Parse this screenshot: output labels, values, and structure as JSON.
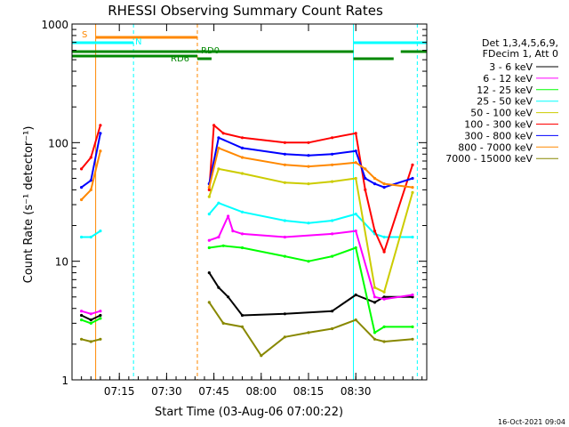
{
  "chart_data": {
    "type": "line",
    "title": "RHESSI Observing Summary Count Rates",
    "xlabel": "Start Time (03-Aug-06 07:00:22)",
    "ylabel": "Count Rate (s⁻¹ detector⁻¹)",
    "y_scale": "log",
    "ylim": [
      1,
      1000
    ],
    "xlim": [
      0,
      7.5
    ],
    "x_ticks": [
      {
        "label": "07:15"
      },
      {
        "label": "07:30"
      },
      {
        "label": "07:45"
      },
      {
        "label": "08:00"
      },
      {
        "label": "08:15"
      },
      {
        "label": "08:30"
      }
    ],
    "y_ticks": [
      {
        "label": "1",
        "value": 1
      },
      {
        "label": "10",
        "value": 10
      },
      {
        "label": "100",
        "value": 100
      },
      {
        "label": "1000",
        "value": 1000
      }
    ],
    "legend_header": [
      "Det 1,3,4,5,6,9,",
      "FDecim 1, Att 0"
    ],
    "legend_position": "right",
    "series": [
      {
        "name": "3 - 6 keV",
        "color": "#000000",
        "points": [
          [
            0.2,
            3.5
          ],
          [
            0.4,
            3.2
          ],
          [
            0.6,
            3.5
          ],
          [
            2.9,
            8
          ],
          [
            3.1,
            6
          ],
          [
            3.3,
            5
          ],
          [
            3.6,
            3.5
          ],
          [
            4.5,
            3.6
          ],
          [
            5.5,
            3.8
          ],
          [
            6.0,
            5.2
          ],
          [
            6.4,
            4.5
          ],
          [
            6.6,
            5
          ],
          [
            7.2,
            5
          ]
        ]
      },
      {
        "name": "6 - 12 keV",
        "color": "#ff00ff",
        "points": [
          [
            0.2,
            3.8
          ],
          [
            0.4,
            3.6
          ],
          [
            0.6,
            3.8
          ],
          [
            2.9,
            15
          ],
          [
            3.1,
            16
          ],
          [
            3.3,
            24
          ],
          [
            3.4,
            18
          ],
          [
            3.6,
            17
          ],
          [
            4.5,
            16
          ],
          [
            5.5,
            17
          ],
          [
            6.0,
            18
          ],
          [
            6.4,
            5
          ],
          [
            6.6,
            4.8
          ],
          [
            7.2,
            5.2
          ]
        ]
      },
      {
        "name": "12 - 25 keV",
        "color": "#00ff00",
        "points": [
          [
            0.2,
            3.2
          ],
          [
            0.4,
            3.0
          ],
          [
            0.6,
            3.3
          ],
          [
            2.9,
            13
          ],
          [
            3.2,
            13.5
          ],
          [
            3.6,
            13
          ],
          [
            4.5,
            11
          ],
          [
            5.0,
            10
          ],
          [
            5.5,
            11
          ],
          [
            6.0,
            13
          ],
          [
            6.4,
            2.5
          ],
          [
            6.6,
            2.8
          ],
          [
            7.2,
            2.8
          ]
        ]
      },
      {
        "name": "25 - 50 keV",
        "color": "#00ffff",
        "points": [
          [
            0.2,
            16
          ],
          [
            0.4,
            16
          ],
          [
            0.6,
            18
          ],
          [
            2.9,
            25
          ],
          [
            3.1,
            31
          ],
          [
            3.6,
            26
          ],
          [
            4.5,
            22
          ],
          [
            5.0,
            21
          ],
          [
            5.5,
            22
          ],
          [
            6.0,
            25
          ],
          [
            6.4,
            17
          ],
          [
            6.6,
            16
          ],
          [
            7.2,
            16
          ]
        ]
      },
      {
        "name": "50 - 100 keV",
        "color": "#cccc00",
        "points": [
          [
            2.9,
            35
          ],
          [
            3.1,
            60
          ],
          [
            3.6,
            55
          ],
          [
            4.5,
            46
          ],
          [
            5.0,
            45
          ],
          [
            5.5,
            47
          ],
          [
            6.0,
            50
          ],
          [
            6.4,
            6
          ],
          [
            6.6,
            5.5
          ],
          [
            7.2,
            38
          ]
        ]
      },
      {
        "name": "100 - 300 keV",
        "color": "#ff0000",
        "points": [
          [
            0.2,
            60
          ],
          [
            0.4,
            75
          ],
          [
            0.6,
            140
          ],
          [
            2.9,
            40
          ],
          [
            3.0,
            140
          ],
          [
            3.2,
            120
          ],
          [
            3.6,
            110
          ],
          [
            4.5,
            100
          ],
          [
            5.0,
            100
          ],
          [
            5.5,
            110
          ],
          [
            6.0,
            120
          ],
          [
            6.2,
            40
          ],
          [
            6.4,
            18
          ],
          [
            6.6,
            12
          ],
          [
            7.2,
            65
          ]
        ]
      },
      {
        "name": "300 - 800 keV",
        "color": "#0000ff",
        "points": [
          [
            0.2,
            42
          ],
          [
            0.4,
            48
          ],
          [
            0.6,
            120
          ],
          [
            2.9,
            45
          ],
          [
            3.1,
            110
          ],
          [
            3.6,
            90
          ],
          [
            4.5,
            80
          ],
          [
            5.0,
            78
          ],
          [
            5.5,
            80
          ],
          [
            6.0,
            85
          ],
          [
            6.2,
            50
          ],
          [
            6.4,
            45
          ],
          [
            6.6,
            42
          ],
          [
            7.2,
            50
          ]
        ]
      },
      {
        "name": "800 - 7000 keV",
        "color": "#ff8800",
        "points": [
          [
            0.2,
            33
          ],
          [
            0.4,
            40
          ],
          [
            0.6,
            85
          ],
          [
            2.9,
            42
          ],
          [
            3.1,
            90
          ],
          [
            3.6,
            75
          ],
          [
            4.5,
            65
          ],
          [
            5.0,
            63
          ],
          [
            5.5,
            65
          ],
          [
            6.0,
            68
          ],
          [
            6.2,
            60
          ],
          [
            6.4,
            50
          ],
          [
            6.6,
            45
          ],
          [
            7.2,
            42
          ]
        ]
      },
      {
        "name": "7000 - 15000 keV",
        "color": "#888800",
        "points": [
          [
            0.2,
            2.2
          ],
          [
            0.4,
            2.1
          ],
          [
            0.6,
            2.2
          ],
          [
            2.9,
            4.5
          ],
          [
            3.2,
            3
          ],
          [
            3.6,
            2.8
          ],
          [
            4.0,
            1.6
          ],
          [
            4.5,
            2.3
          ],
          [
            5.0,
            2.5
          ],
          [
            5.5,
            2.7
          ],
          [
            6.0,
            3.2
          ],
          [
            6.4,
            2.2
          ],
          [
            6.6,
            2.1
          ],
          [
            7.2,
            2.2
          ]
        ]
      }
    ],
    "annotations": [
      {
        "text": "S",
        "color": "#ff8800"
      },
      {
        "text": "N",
        "color": "#00ffff"
      },
      {
        "text": "RD6",
        "color": "#008800"
      },
      {
        "text": "RD0",
        "color": "#008800"
      }
    ],
    "footer": "16-Oct-2021 09:04"
  }
}
